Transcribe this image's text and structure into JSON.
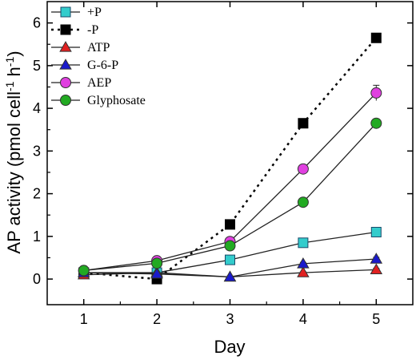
{
  "chart_data": {
    "type": "line",
    "xlabel": "Day",
    "ylabel": "AP activity (pmol cell",
    "ylabel_sup1": "-1",
    "ylabel_mid": " h",
    "ylabel_sup2": "-1",
    "ylabel_end": ")",
    "x": [
      1,
      2,
      3,
      4,
      5
    ],
    "xlim": [
      0.5,
      5.5
    ],
    "ylim": [
      -0.6,
      6.5
    ],
    "xticks": [
      "1",
      "2",
      "3",
      "4",
      "5"
    ],
    "yticks": [
      "0",
      "1",
      "2",
      "3",
      "4",
      "5",
      "6"
    ],
    "legend_position": "top-left",
    "series": [
      {
        "name": "+P",
        "marker": "square",
        "color": "#33cccc",
        "line": "solid",
        "values": [
          0.15,
          0.15,
          0.45,
          0.85,
          1.1
        ],
        "errors": [
          0.03,
          0.03,
          0.04,
          0.06,
          0.08
        ]
      },
      {
        "name": "-P",
        "marker": "square",
        "color": "#000000",
        "line": "dotted",
        "values": [
          0.15,
          0.0,
          1.28,
          3.65,
          5.65
        ],
        "errors": [
          0,
          0,
          0,
          0,
          0
        ]
      },
      {
        "name": "ATP",
        "marker": "triangle",
        "color": "#e02020",
        "line": "solid",
        "values": [
          0.1,
          0.15,
          0.05,
          0.15,
          0.22
        ],
        "errors": [
          0.02,
          0.02,
          0.02,
          0.02,
          0.03
        ]
      },
      {
        "name": "G-6-P",
        "marker": "triangle",
        "color": "#1a1acc",
        "line": "solid",
        "values": [
          0.15,
          0.12,
          0.05,
          0.36,
          0.47
        ],
        "errors": [
          0.02,
          0.02,
          0.02,
          0.03,
          0.04
        ]
      },
      {
        "name": "AEP",
        "marker": "circle",
        "color": "#e040e0",
        "line": "solid",
        "values": [
          0.2,
          0.43,
          0.88,
          2.58,
          4.36
        ],
        "errors": [
          0.03,
          0.04,
          0.05,
          0.08,
          0.18
        ]
      },
      {
        "name": "Glyphosate",
        "marker": "circle",
        "color": "#22aa22",
        "line": "solid",
        "values": [
          0.2,
          0.37,
          0.78,
          1.8,
          3.65
        ],
        "errors": [
          0.03,
          0.03,
          0.05,
          0.07,
          0.1
        ]
      }
    ]
  }
}
